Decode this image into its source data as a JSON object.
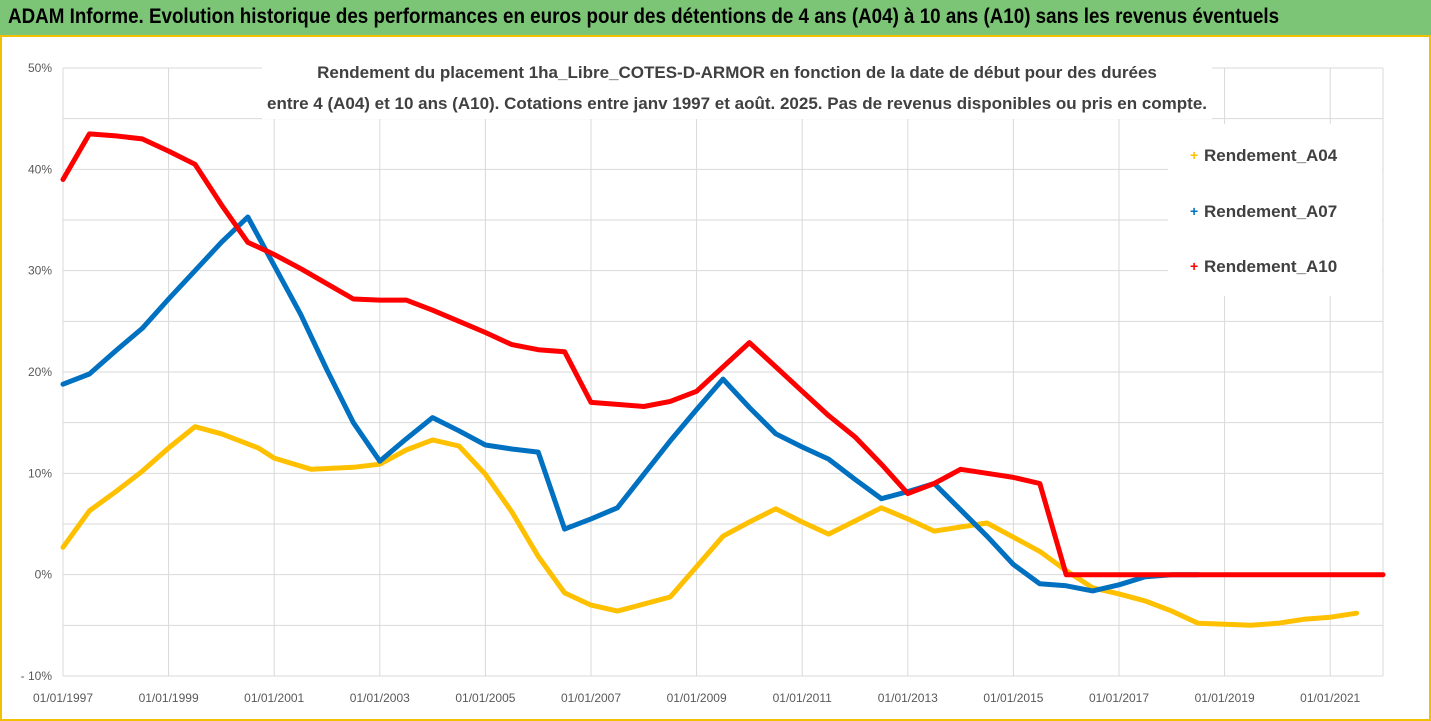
{
  "header": {
    "title": "ADAM Informe. Evolution historique des performances en euros pour des détentions de 4 ans (A04) à 10 ans (A10) sans les revenus éventuels"
  },
  "colors": {
    "header_bg": "#7cc576",
    "A04": "#ffc000",
    "A07": "#0070c0",
    "A10": "#ff0000",
    "grid": "#d9d9d9"
  },
  "chart_data": {
    "type": "line",
    "title": [
      "Rendement du placement 1ha_Libre_COTES-D-ARMOR en fonction de la date de début pour des durées",
      "entre 4 (A04) et 10 ans (A10). Cotations entre janv 1997 et août. 2025. Pas de revenus disponibles ou pris en compte."
    ],
    "y_ticks": [
      "50%",
      "40%",
      "30%",
      "20%",
      "10%",
      "0%",
      "- 10%"
    ],
    "x_ticks": [
      "01/01/1997",
      "01/01/1999",
      "01/01/2001",
      "01/01/2003",
      "01/01/2005",
      "01/01/2007",
      "01/01/2009",
      "01/01/2011",
      "01/01/2013",
      "01/01/2015",
      "01/01/2017",
      "01/01/2019",
      "01/01/2021"
    ],
    "xlim": [
      1997.0,
      2022.0
    ],
    "ylim": [
      -10,
      50
    ],
    "grid": true,
    "legend_position": "right",
    "series": [
      {
        "name": "Rendement_A04",
        "color": "#ffc000",
        "x": [
          1997.0,
          1997.5,
          1998.0,
          1998.5,
          1999.0,
          1999.5,
          2000.0,
          2000.7,
          2001.0,
          2001.7,
          2002.5,
          2003.0,
          2003.5,
          2004.0,
          2004.5,
          2005.0,
          2005.5,
          2006.0,
          2006.5,
          2007.0,
          2007.5,
          2008.0,
          2008.5,
          2009.0,
          2009.5,
          2010.0,
          2010.5,
          2011.0,
          2011.5,
          2012.0,
          2012.5,
          2013.0,
          2013.5,
          2014.0,
          2014.5,
          2015.0,
          2015.5,
          2016.0,
          2016.5,
          2017.0,
          2017.5,
          2018.0,
          2018.5,
          2019.0,
          2019.5,
          2020.0,
          2020.5,
          2021.0,
          2021.5
        ],
        "y": [
          2.7,
          6.3,
          8.2,
          10.2,
          12.5,
          14.6,
          13.9,
          12.5,
          11.5,
          10.4,
          10.6,
          10.9,
          12.3,
          13.3,
          12.7,
          9.9,
          6.2,
          1.8,
          -1.8,
          -3.0,
          -3.6,
          -2.9,
          -2.2,
          0.8,
          3.8,
          5.2,
          6.5,
          5.2,
          4.0,
          5.3,
          6.6,
          5.5,
          4.3,
          4.7,
          5.1,
          3.7,
          2.3,
          0.4,
          -1.3,
          -1.9,
          -2.6,
          -3.6,
          -4.8,
          -4.9,
          -5.0,
          -4.8,
          -4.4,
          -4.2,
          -3.8
        ]
      },
      {
        "name": "Rendement_A07",
        "color": "#0070c0",
        "x": [
          1997.0,
          1997.5,
          1998.0,
          1998.5,
          1999.0,
          1999.5,
          2000.0,
          2000.5,
          2001.0,
          2001.5,
          2002.0,
          2002.5,
          2003.0,
          2003.5,
          2004.0,
          2004.5,
          2005.0,
          2005.5,
          2006.0,
          2006.5,
          2007.0,
          2007.5,
          2008.0,
          2008.5,
          2009.0,
          2009.5,
          2010.0,
          2010.5,
          2011.0,
          2011.5,
          2012.0,
          2012.5,
          2013.0,
          2013.5,
          2014.0,
          2014.5,
          2015.0,
          2015.5,
          2016.0,
          2016.5,
          2017.0,
          2017.5,
          2018.0,
          2018.5
        ],
        "y": [
          18.8,
          19.8,
          22.1,
          24.3,
          27.2,
          30.0,
          32.8,
          35.3,
          30.5,
          25.7,
          20.2,
          15.0,
          11.2,
          13.4,
          15.5,
          14.2,
          12.8,
          12.4,
          12.1,
          4.5,
          5.5,
          6.6,
          9.9,
          13.2,
          16.3,
          19.3,
          16.5,
          13.9,
          12.6,
          11.4,
          9.4,
          7.5,
          8.2,
          9.0,
          6.4,
          3.8,
          1.0,
          -0.9,
          -1.1,
          -1.6,
          -1.0,
          -0.2,
          0.0,
          0.0
        ]
      },
      {
        "name": "Rendement_A10",
        "color": "#ff0000",
        "x": [
          1997.0,
          1997.5,
          1998.0,
          1998.5,
          1999.0,
          1999.5,
          2000.0,
          2000.5,
          2001.0,
          2001.5,
          2002.0,
          2002.5,
          2003.0,
          2003.5,
          2004.0,
          2004.5,
          2005.0,
          2005.5,
          2006.0,
          2006.5,
          2007.0,
          2007.5,
          2008.0,
          2008.5,
          2009.0,
          2009.5,
          2010.0,
          2010.5,
          2011.0,
          2011.5,
          2012.0,
          2012.5,
          2013.0,
          2013.5,
          2014.0,
          2014.5,
          2015.0,
          2015.5,
          2016.0,
          2017.0,
          2018.0,
          2019.0,
          2020.0,
          2021.0,
          2022.0
        ],
        "y": [
          39.0,
          43.5,
          43.3,
          43.0,
          41.8,
          40.5,
          36.5,
          32.8,
          31.6,
          30.2,
          28.7,
          27.2,
          27.1,
          27.1,
          26.1,
          25.0,
          23.9,
          22.7,
          22.2,
          22.0,
          17.0,
          16.8,
          16.6,
          17.1,
          18.1,
          20.5,
          22.9,
          20.5,
          18.1,
          15.7,
          13.6,
          10.9,
          8.0,
          9.0,
          10.4,
          10.0,
          9.6,
          9.0,
          0.0,
          0.0,
          0.0,
          0.0,
          0.0,
          0.0,
          0.0
        ]
      }
    ]
  }
}
